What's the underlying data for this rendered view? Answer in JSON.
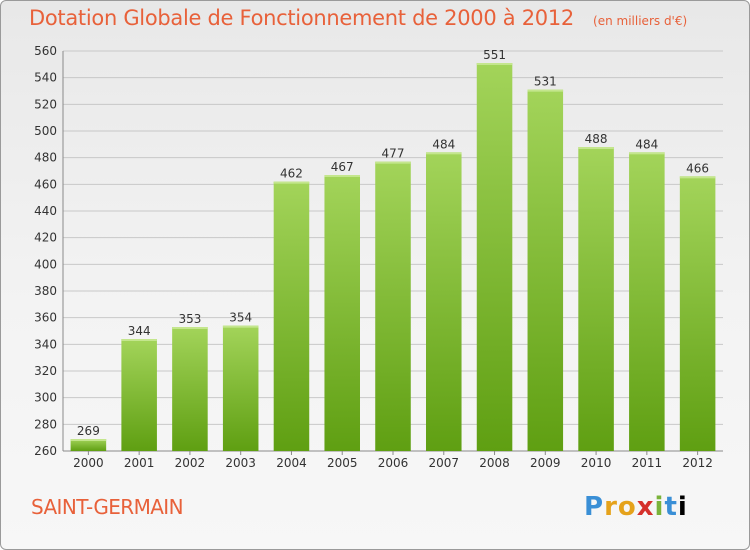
{
  "header": {
    "title": "Dotation Globale de Fonctionnement de 2000 à 2012",
    "unit": "(en milliers d'€)"
  },
  "footer": {
    "commune": "SAINT-GERMAIN",
    "logo": "Proxiti"
  },
  "colors": {
    "title": "#e8613a",
    "bar_light": "#a3d45a",
    "bar_dark": "#5f9f12",
    "grid": "#c8c8c8"
  },
  "chart_data": {
    "type": "bar",
    "title": "Dotation Globale de Fonctionnement de 2000 à 2012",
    "subtitle": "(en milliers d'€)",
    "xlabel": "",
    "ylabel": "",
    "categories": [
      "2000",
      "2001",
      "2002",
      "2003",
      "2004",
      "2005",
      "2006",
      "2007",
      "2008",
      "2009",
      "2010",
      "2011",
      "2012"
    ],
    "values": [
      269,
      344,
      353,
      354,
      462,
      467,
      477,
      484,
      551,
      531,
      488,
      484,
      466
    ],
    "ylim": [
      260,
      560
    ],
    "yticks": [
      260,
      280,
      300,
      320,
      340,
      360,
      380,
      400,
      420,
      440,
      460,
      480,
      500,
      520,
      540,
      560
    ],
    "grid": true,
    "legend": "none"
  }
}
